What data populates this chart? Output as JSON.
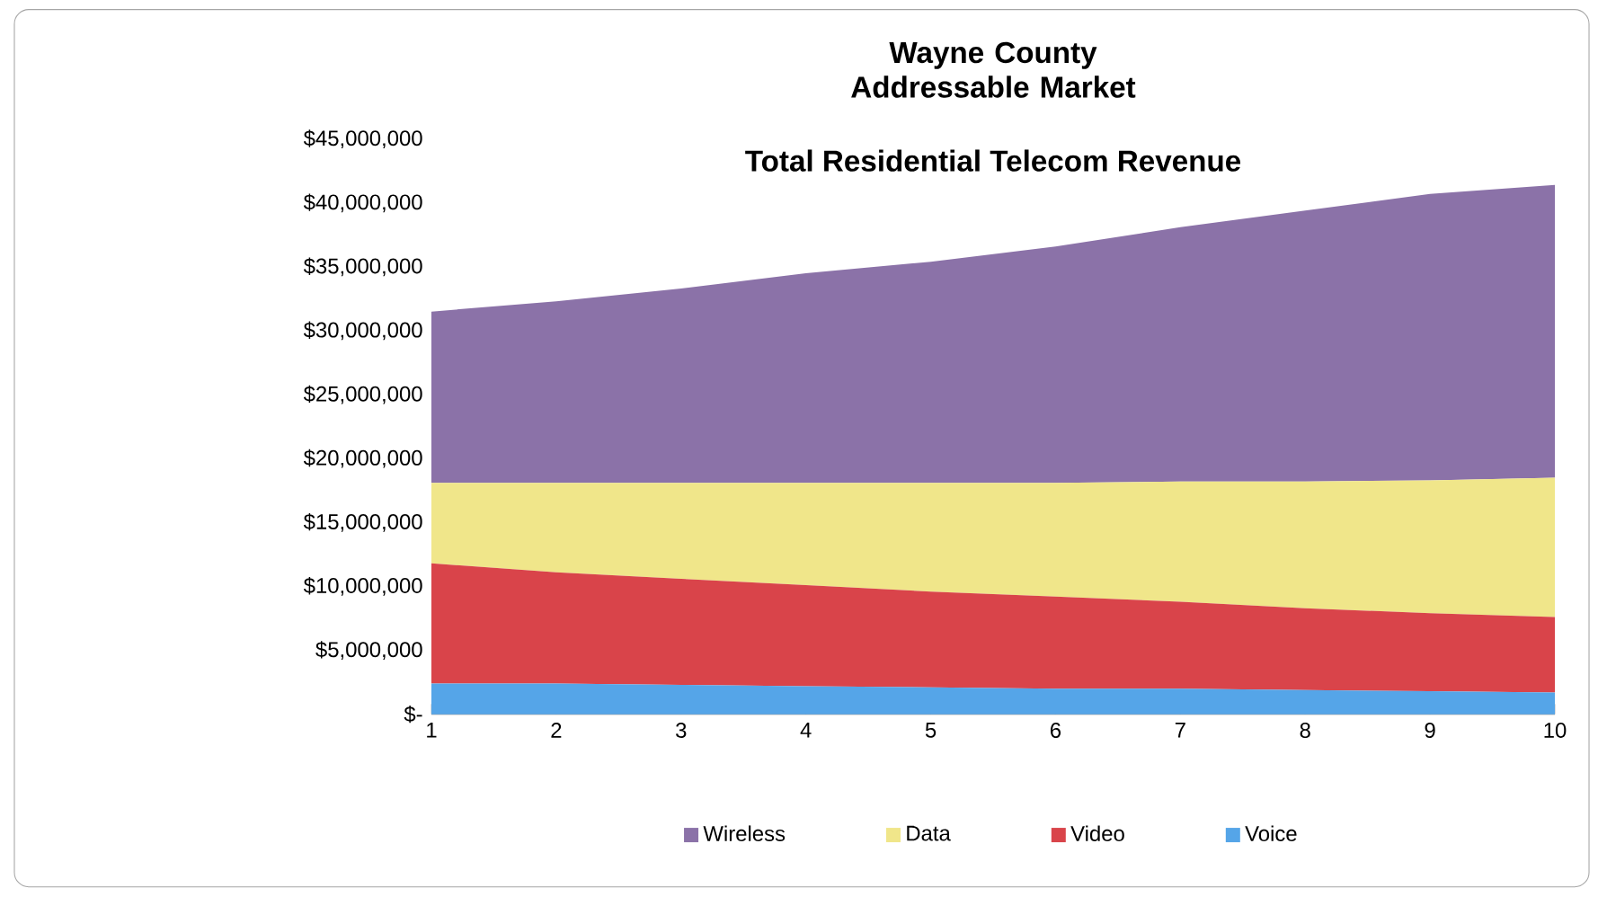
{
  "chart_data": {
    "type": "area",
    "title": "Wayne County Addressable Market",
    "subtitle": "Total Residential Telecom Revenue",
    "stacked": true,
    "legend": "bottom",
    "x": [
      1,
      2,
      3,
      4,
      5,
      6,
      7,
      8,
      9,
      10
    ],
    "xlim": [
      1,
      10
    ],
    "xticks": [
      1,
      2,
      3,
      4,
      5,
      6,
      7,
      8,
      9,
      10
    ],
    "ylim": [
      0,
      45000000
    ],
    "yticks": [
      {
        "value": 0,
        "label": "$-"
      },
      {
        "value": 5000000,
        "label": "$5,000,000"
      },
      {
        "value": 10000000,
        "label": "$10,000,000"
      },
      {
        "value": 15000000,
        "label": "$15,000,000"
      },
      {
        "value": 20000000,
        "label": "$20,000,000"
      },
      {
        "value": 25000000,
        "label": "$25,000,000"
      },
      {
        "value": 30000000,
        "label": "$30,000,000"
      },
      {
        "value": 35000000,
        "label": "$35,000,000"
      },
      {
        "value": 40000000,
        "label": "$40,000,000"
      },
      {
        "value": 45000000,
        "label": "$45,000,000"
      }
    ],
    "series": [
      {
        "name": "Voice",
        "color": "#55a5e8",
        "values": [
          2400000,
          2400000,
          2300000,
          2200000,
          2100000,
          2000000,
          2000000,
          1900000,
          1800000,
          1700000
        ]
      },
      {
        "name": "Video",
        "color": "#d9444a",
        "values": [
          9400000,
          8700000,
          8300000,
          7900000,
          7500000,
          7200000,
          6800000,
          6400000,
          6100000,
          5900000
        ]
      },
      {
        "name": "Data",
        "color": "#f0e68a",
        "values": [
          6300000,
          7000000,
          7500000,
          8000000,
          8500000,
          8900000,
          9400000,
          9900000,
          10400000,
          10900000
        ]
      },
      {
        "name": "Wireless",
        "color": "#8b72a8",
        "values": [
          13400000,
          14200000,
          15200000,
          16400000,
          17300000,
          18500000,
          19900000,
          21200000,
          22400000,
          22900000
        ]
      }
    ]
  }
}
